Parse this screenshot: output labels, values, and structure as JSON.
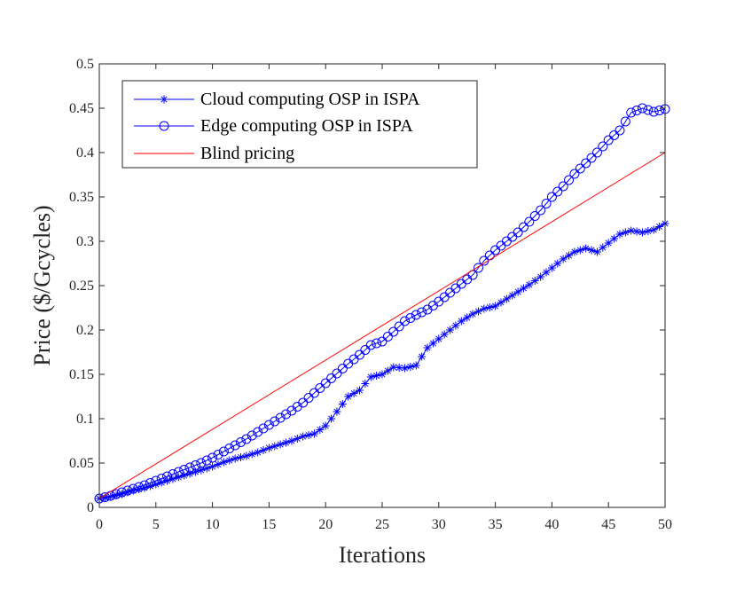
{
  "chart_data": {
    "type": "line",
    "title": "",
    "xlabel": "Iterations",
    "ylabel": "Price ($/Gcycles)",
    "xlim": [
      0,
      50
    ],
    "ylim": [
      0,
      0.5
    ],
    "xticks": [
      "0",
      "5",
      "10",
      "15",
      "20",
      "25",
      "30",
      "35",
      "40",
      "45",
      "50"
    ],
    "yticks": [
      "0",
      "0.05",
      "0.1",
      "0.15",
      "0.2",
      "0.25",
      "0.3",
      "0.35",
      "0.4",
      "0.45",
      "0.5"
    ],
    "grid": false,
    "legend_position": "top-left",
    "series": [
      {
        "name": "Cloud computing OSP in ISPA",
        "color": "#0000ff",
        "marker": "asterisk",
        "x": [
          0,
          1,
          2,
          3,
          4,
          5,
          6,
          7,
          8,
          9,
          10,
          11,
          12,
          13,
          14,
          15,
          16,
          17,
          18,
          19,
          20,
          21,
          22,
          23,
          24,
          25,
          26,
          27,
          28,
          29,
          30,
          31,
          32,
          33,
          34,
          35,
          36,
          37,
          38,
          39,
          40,
          41,
          42,
          43,
          44,
          45,
          46,
          47,
          48,
          49,
          50
        ],
        "values": [
          0.01,
          0.012,
          0.015,
          0.019,
          0.022,
          0.026,
          0.03,
          0.034,
          0.038,
          0.042,
          0.046,
          0.051,
          0.055,
          0.058,
          0.062,
          0.067,
          0.071,
          0.075,
          0.08,
          0.083,
          0.092,
          0.108,
          0.125,
          0.132,
          0.147,
          0.15,
          0.158,
          0.157,
          0.16,
          0.18,
          0.19,
          0.2,
          0.21,
          0.218,
          0.224,
          0.227,
          0.235,
          0.243,
          0.251,
          0.26,
          0.27,
          0.28,
          0.288,
          0.292,
          0.288,
          0.298,
          0.308,
          0.312,
          0.31,
          0.313,
          0.32
        ]
      },
      {
        "name": "Edge computing OSP in ISPA",
        "color": "#0000ff",
        "marker": "circle",
        "x": [
          0,
          1,
          2,
          3,
          4,
          5,
          6,
          7,
          8,
          9,
          10,
          11,
          12,
          13,
          14,
          15,
          16,
          17,
          18,
          19,
          20,
          21,
          22,
          23,
          24,
          25,
          26,
          27,
          28,
          29,
          30,
          31,
          32,
          33,
          34,
          35,
          36,
          37,
          38,
          39,
          40,
          41,
          42,
          43,
          44,
          45,
          46,
          47,
          48,
          49,
          50
        ],
        "values": [
          0.01,
          0.013,
          0.017,
          0.021,
          0.025,
          0.03,
          0.035,
          0.04,
          0.045,
          0.05,
          0.056,
          0.063,
          0.07,
          0.077,
          0.085,
          0.093,
          0.101,
          0.109,
          0.118,
          0.129,
          0.14,
          0.151,
          0.162,
          0.172,
          0.183,
          0.187,
          0.198,
          0.21,
          0.217,
          0.223,
          0.232,
          0.242,
          0.252,
          0.262,
          0.278,
          0.29,
          0.3,
          0.31,
          0.322,
          0.335,
          0.35,
          0.362,
          0.376,
          0.388,
          0.4,
          0.414,
          0.425,
          0.445,
          0.45,
          0.446,
          0.449
        ]
      },
      {
        "name": "Blind pricing",
        "color": "#ff0000",
        "marker": "none",
        "x": [
          0,
          50
        ],
        "values": [
          0.01,
          0.4
        ]
      }
    ]
  }
}
